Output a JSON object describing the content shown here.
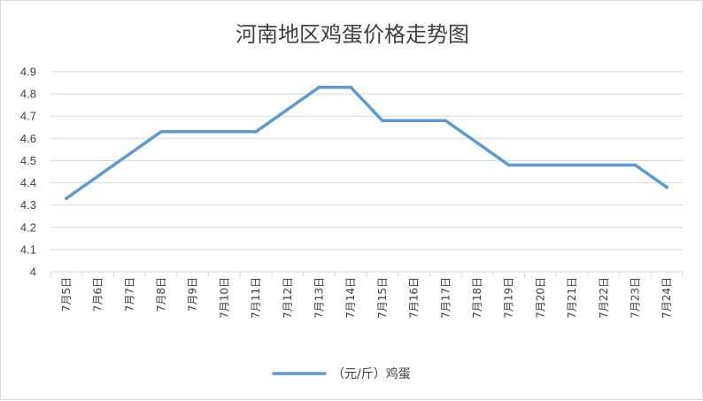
{
  "chart_data": {
    "type": "line",
    "title": "河南地区鸡蛋价格走势图",
    "categories": [
      "7月5日",
      "7月6日",
      "7月7日",
      "7月8日",
      "7月9日",
      "7月10日",
      "7月11日",
      "7月12日",
      "7月13日",
      "7月14日",
      "7月15日",
      "7月16日",
      "7月17日",
      "7月18日",
      "7月19日",
      "7月20日",
      "7月21日",
      "7月22日",
      "7月23日",
      "7月24日"
    ],
    "series": [
      {
        "name": "（元/斤）鸡蛋",
        "color": "#5b9bd5",
        "values": [
          4.33,
          4.43,
          4.53,
          4.63,
          4.63,
          4.63,
          4.63,
          4.73,
          4.83,
          4.83,
          4.68,
          4.68,
          4.68,
          4.58,
          4.48,
          4.48,
          4.48,
          4.48,
          4.48,
          4.38
        ]
      }
    ],
    "yticks": [
      "4",
      "4.1",
      "4.2",
      "4.3",
      "4.4",
      "4.5",
      "4.6",
      "4.7",
      "4.8",
      "4.9"
    ],
    "ylim": [
      4,
      4.9
    ],
    "grid": true,
    "legend_position": "bottom"
  }
}
